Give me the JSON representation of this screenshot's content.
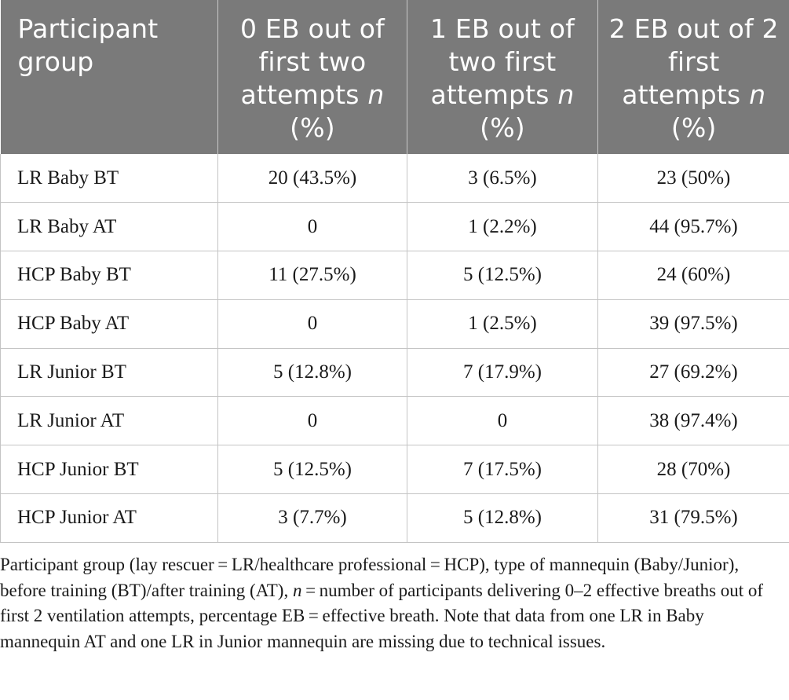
{
  "table": {
    "headers": [
      {
        "text": "Participant group"
      },
      {
        "text": "0 EB out of first two attempts ",
        "italic": "n",
        "tail": " (%)"
      },
      {
        "text": "1 EB out of two first attempts ",
        "italic": "n",
        "tail": " (%)"
      },
      {
        "text": "2 EB out of 2 first attempts ",
        "italic": "n",
        "tail": " (%)"
      }
    ],
    "rows": [
      {
        "group": "LR Baby BT",
        "zero": "20 (43.5%)",
        "one": "3 (6.5%)",
        "two": "23 (50%)"
      },
      {
        "group": "LR Baby AT",
        "zero": "0",
        "one": "1 (2.2%)",
        "two": "44 (95.7%)"
      },
      {
        "group": "HCP Baby BT",
        "zero": "11 (27.5%)",
        "one": "5 (12.5%)",
        "two": "24 (60%)"
      },
      {
        "group": "HCP Baby AT",
        "zero": "0",
        "one": "1 (2.5%)",
        "two": "39 (97.5%)"
      },
      {
        "group": "LR Junior BT",
        "zero": "5 (12.8%)",
        "one": "7 (17.9%)",
        "two": "27 (69.2%)"
      },
      {
        "group": "LR Junior AT",
        "zero": "0",
        "one": "0",
        "two": "38 (97.4%)"
      },
      {
        "group": "HCP Junior BT",
        "zero": "5 (12.5%)",
        "one": "7 (17.5%)",
        "two": "28 (70%)"
      },
      {
        "group": "HCP Junior AT",
        "zero": "3 (7.7%)",
        "one": "5 (12.8%)",
        "two": "31 (79.5%)"
      }
    ]
  },
  "footnote": {
    "part1": "Participant group (lay rescuer = LR/healthcare professional = HCP), type of mannequin (Baby/Junior), before training (BT)/after training (AT), ",
    "italic": "n",
    "part2": " = number of participants delivering 0–2 effective breaths out of first 2 ventilation attempts, percentage EB = effective breath. Note that data from one LR in Baby mannequin AT and one LR in Junior mannequin are missing due to technical issues."
  }
}
